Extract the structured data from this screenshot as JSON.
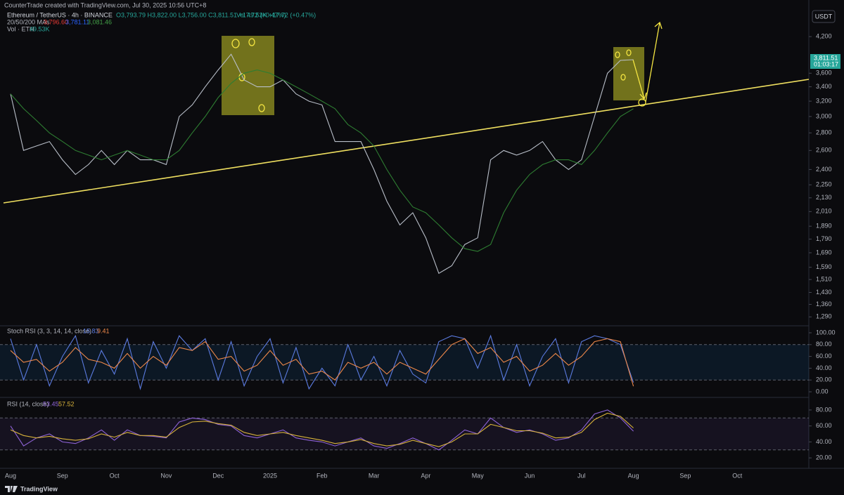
{
  "header": {
    "credit": "CounterTrade created with TradingView.com, Jul 30, 2025 10:56 UTC+8",
    "symbol": "Ethereum / TetherUS · 4h · BINANCE",
    "ohlc": "O3,793.79 H3,822.00 L3,756.00 C3,811.51 +17.72 (+0.47%)",
    "vol_change": "Vol 49.53K +17.72 (+0.47%)",
    "ma_label": "20/50/200 MAs",
    "ma20": "3,796.60",
    "ma50": "3,781.11",
    "ma200": "3,081.46",
    "vol_label": "Vol · ETH",
    "vol_value": "49.53K",
    "currency": "USDT",
    "last_price": "3,811.51",
    "countdown": "01:03:17",
    "footer": "TradingView"
  },
  "chart_data": [
    {
      "type": "line",
      "log": true,
      "grid": false,
      "categories": [
        "Aug",
        null,
        null,
        null,
        "Sep",
        null,
        null,
        null,
        "Oct",
        null,
        null,
        null,
        "Nov",
        null,
        null,
        null,
        "Dec",
        null,
        null,
        null,
        "2025",
        null,
        null,
        null,
        "Feb",
        null,
        null,
        null,
        "Mar",
        null,
        null,
        null,
        "Apr",
        null,
        null,
        null,
        "May",
        null,
        null,
        null,
        "Jun",
        null,
        null,
        null,
        "Jul",
        null,
        null,
        null,
        "Aug",
        null,
        null,
        null,
        "Sep",
        null,
        null,
        null,
        "Oct",
        null,
        null,
        null
      ],
      "ylim": [
        1250,
        4900
      ],
      "yticks": [
        {
          "value": 4200,
          "label": "4,200"
        },
        {
          "value": 3600,
          "label": "3,600"
        },
        {
          "value": 3400,
          "label": "3,400"
        },
        {
          "value": 3200,
          "label": "3,200"
        },
        {
          "value": 3000,
          "label": "3,000"
        },
        {
          "value": 2800,
          "label": "2,800"
        },
        {
          "value": 2600,
          "label": "2,600"
        },
        {
          "value": 2400,
          "label": "2,400"
        },
        {
          "value": 2250,
          "label": "2,250"
        },
        {
          "value": 2130,
          "label": "2,130"
        },
        {
          "value": 2010,
          "label": "2,010"
        },
        {
          "value": 1890,
          "label": "1,890"
        },
        {
          "value": 1790,
          "label": "1,790"
        },
        {
          "value": 1690,
          "label": "1,690"
        },
        {
          "value": 1590,
          "label": "1,590"
        },
        {
          "value": 1510,
          "label": "1,510"
        },
        {
          "value": 1430,
          "label": "1,430"
        },
        {
          "value": 1360,
          "label": "1,360"
        },
        {
          "value": 1290,
          "label": "1,290"
        }
      ],
      "series": [
        {
          "color": "#b8bec8",
          "values": [
            3300,
            2600,
            2650,
            2700,
            2500,
            2350,
            2450,
            2600,
            2450,
            2600,
            2500,
            2500,
            2450,
            3000,
            3150,
            3400,
            3650,
            3900,
            3500,
            3400,
            3400,
            3500,
            3300,
            3200,
            3150,
            2700,
            2700,
            2700,
            2400,
            2100,
            1900,
            2000,
            1800,
            1550,
            1600,
            1750,
            1800,
            2500,
            2600,
            2550,
            2600,
            2700,
            2500,
            2400,
            2500,
            3000,
            3600,
            3800,
            3811.51,
            null,
            null,
            null,
            null,
            null,
            null,
            null,
            null,
            null,
            null,
            null
          ]
        },
        {
          "color": "#2e7d32",
          "values": [
            3300,
            3100,
            2950,
            2800,
            2700,
            2600,
            2550,
            2500,
            2550,
            2600,
            2550,
            2500,
            2500,
            2600,
            2800,
            3000,
            3250,
            3450,
            3600,
            3650,
            3600,
            3500,
            3400,
            3300,
            3200,
            3100,
            2900,
            2800,
            2650,
            2400,
            2200,
            2050,
            2000,
            1900,
            1800,
            1720,
            1700,
            1750,
            2000,
            2200,
            2350,
            2450,
            2500,
            2500,
            2450,
            2600,
            2800,
            3000,
            3100,
            null,
            null,
            null,
            null,
            null,
            null,
            null,
            null,
            null,
            null,
            null
          ]
        }
      ]
    },
    {
      "type": "line",
      "title": "Stoch RSI (3, 3, 14, 14, close)",
      "k_label": "15.83",
      "d_label": "9.41",
      "ylim": [
        -8.3,
        109.5
      ],
      "band": [
        20,
        80
      ],
      "yticks": [
        {
          "value": 100,
          "label": "100.00"
        },
        {
          "value": 80,
          "label": "80.00"
        },
        {
          "value": 60,
          "label": "60.00"
        },
        {
          "value": 40,
          "label": "40.00"
        },
        {
          "value": 20,
          "label": "20.00"
        },
        {
          "value": 0,
          "label": "0.00"
        }
      ],
      "series": [
        {
          "color": "#5b7be0",
          "values": [
            90,
            20,
            80,
            10,
            60,
            95,
            15,
            70,
            30,
            90,
            5,
            85,
            40,
            95,
            70,
            90,
            20,
            85,
            10,
            60,
            90,
            15,
            75,
            5,
            40,
            10,
            80,
            20,
            60,
            10,
            70,
            30,
            15,
            85,
            95,
            90,
            40,
            95,
            20,
            80,
            10,
            60,
            90,
            15,
            85,
            95,
            90,
            80,
            15.83,
            null,
            null,
            null,
            null,
            null,
            null,
            null,
            null,
            null,
            null,
            null
          ]
        },
        {
          "color": "#f0894a",
          "values": [
            70,
            50,
            55,
            35,
            50,
            75,
            55,
            50,
            40,
            65,
            40,
            60,
            45,
            75,
            70,
            85,
            55,
            60,
            35,
            45,
            70,
            45,
            55,
            30,
            35,
            20,
            50,
            40,
            50,
            30,
            50,
            40,
            30,
            55,
            80,
            90,
            65,
            75,
            50,
            60,
            35,
            45,
            65,
            45,
            60,
            85,
            90,
            85,
            9.41,
            null,
            null,
            null,
            null,
            null,
            null,
            null,
            null,
            null,
            null,
            null
          ]
        }
      ]
    },
    {
      "type": "line",
      "title": "RSI (14, close)",
      "rsi_label": "53.45",
      "ma_label": "57.52",
      "ylim": [
        8.7,
        94
      ],
      "band": [
        30,
        70
      ],
      "yticks": [
        {
          "value": 80,
          "label": "80.00"
        },
        {
          "value": 60,
          "label": "60.00"
        },
        {
          "value": 40,
          "label": "40.00"
        },
        {
          "value": 20,
          "label": "20.00"
        }
      ],
      "series": [
        {
          "color": "#8e63d6",
          "values": [
            60,
            35,
            45,
            50,
            40,
            38,
            45,
            55,
            42,
            55,
            48,
            47,
            45,
            65,
            70,
            68,
            62,
            60,
            48,
            45,
            50,
            55,
            45,
            42,
            40,
            35,
            40,
            45,
            35,
            32,
            38,
            45,
            38,
            30,
            42,
            55,
            50,
            70,
            58,
            52,
            55,
            50,
            42,
            45,
            55,
            75,
            80,
            70,
            53.45,
            null,
            null,
            null,
            null,
            null,
            null,
            null,
            null,
            null,
            null,
            null
          ]
        },
        {
          "color": "#d6b13a",
          "values": [
            55,
            48,
            45,
            47,
            44,
            42,
            44,
            50,
            46,
            52,
            48,
            48,
            46,
            58,
            65,
            66,
            63,
            61,
            52,
            48,
            50,
            52,
            48,
            45,
            42,
            38,
            40,
            43,
            38,
            35,
            37,
            42,
            38,
            34,
            40,
            50,
            50,
            62,
            58,
            54,
            54,
            51,
            45,
            46,
            52,
            68,
            76,
            72,
            57.52,
            null,
            null,
            null,
            null,
            null,
            null,
            null,
            null,
            null,
            null,
            null
          ]
        }
      ]
    }
  ]
}
